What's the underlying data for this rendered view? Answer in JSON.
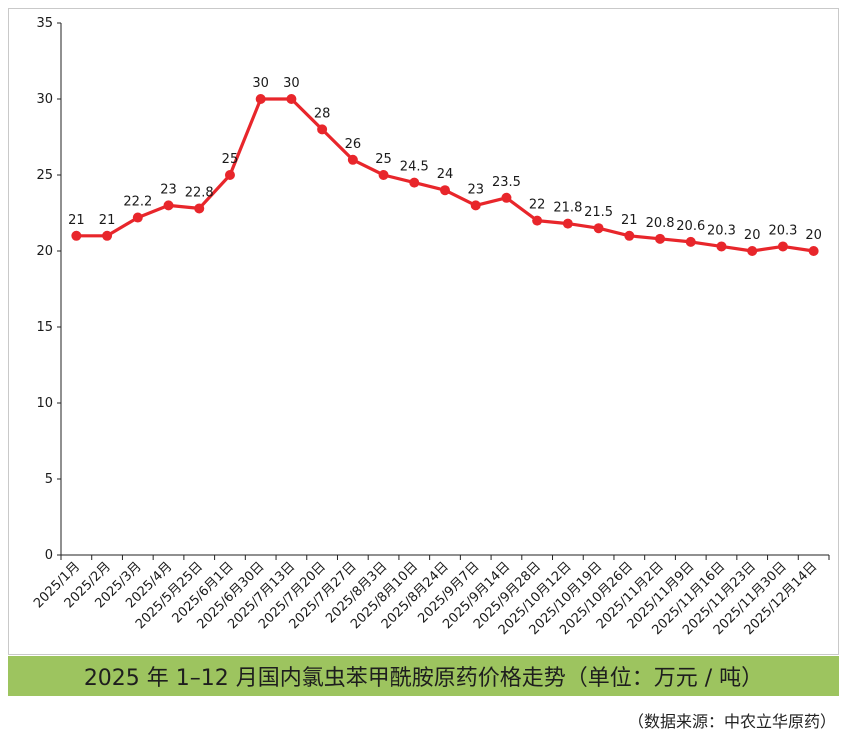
{
  "chart_data": {
    "type": "line",
    "title": "2025 年 1–12 月国内氯虫苯甲酰胺原药价格走势（单位：万元 / 吨）",
    "xlabel": "",
    "ylabel": "",
    "ylim": [
      0,
      35
    ],
    "yticks": [
      0,
      5,
      10,
      15,
      20,
      25,
      30,
      35
    ],
    "grid": false,
    "legend": "none",
    "categories": [
      "2025/1月",
      "2025/2月",
      "2025/3月",
      "2025/4月",
      "2025/5月25日",
      "2025/6月1日",
      "2025/6月30日",
      "2025/7月13日",
      "2025/7月20日",
      "2025/7月27日",
      "2025/8月3日",
      "2025/8月10日",
      "2025/8月24日",
      "2025/9月7日",
      "2025/9月14日",
      "2025/9月28日",
      "2025/10月12日",
      "2025/10月19日",
      "2025/10月26日",
      "2025/11月2日",
      "2025/11月9日",
      "2025/11月16日",
      "2025/11月23日",
      "2025/11月30日",
      "2025/12月14日"
    ],
    "series": [
      {
        "name": "氯虫苯甲酰胺原药价格",
        "values": [
          21,
          21,
          22.2,
          23,
          22.8,
          25,
          30,
          30,
          28,
          26,
          25,
          24.5,
          24,
          23,
          23.5,
          22,
          21.8,
          21.5,
          21,
          20.8,
          20.6,
          20.3,
          20,
          20.3,
          20
        ],
        "labels": [
          "21",
          "21",
          "22.2",
          "23",
          "22.8",
          "25",
          "30",
          "30",
          "28",
          "26",
          "25",
          "24.5",
          "24",
          "23",
          "23.5",
          "22",
          "21.8",
          "21.5",
          "21",
          "20.8",
          "20.6",
          "20.3",
          "20",
          "20.3",
          "20"
        ],
        "color": "#e8262b"
      }
    ]
  },
  "caption": "2025 年 1–12 月国内氯虫苯甲酰胺原药价格走势（单位：万元 / 吨）",
  "source": "（数据来源：中农立华原药）",
  "colors": {
    "line": "#e8262b",
    "caption_bg": "#9dc45f",
    "axis": "#222222"
  }
}
